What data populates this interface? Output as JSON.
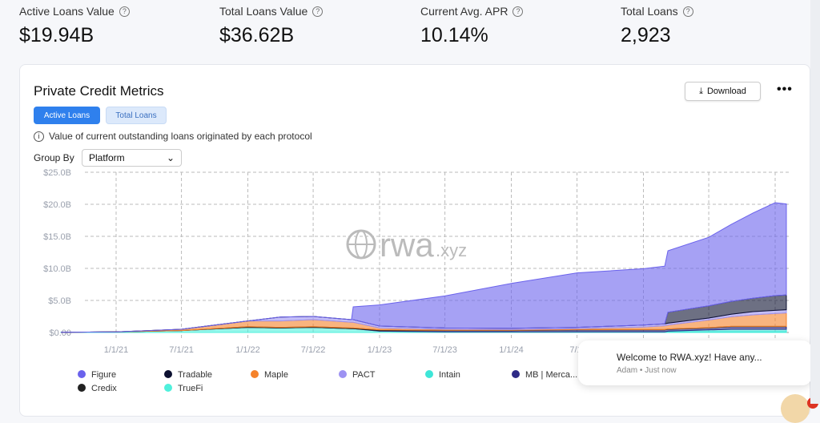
{
  "stats": [
    {
      "label": "Active Loans Value",
      "value": "$19.94B"
    },
    {
      "label": "Total Loans Value",
      "value": "$36.62B"
    },
    {
      "label": "Current Avg. APR",
      "value": "10.14%"
    },
    {
      "label": "Total Loans",
      "value": "2,923"
    }
  ],
  "card": {
    "title": "Private Credit Metrics",
    "download": "Download",
    "more": "•••",
    "tabs": [
      "Active Loans",
      "Total Loans"
    ],
    "active_tab": "Active Loans",
    "info": "Value of current outstanding loans originated by each protocol",
    "group_by_label": "Group By",
    "group_by_value": "Platform",
    "watermark": "rwa.xyz"
  },
  "toast": {
    "message": "Welcome to RWA.xyz! Have any...",
    "sender": "Adam • Just now"
  },
  "chart_data": {
    "type": "area",
    "stacked": true,
    "grid": true,
    "legend": "bottom",
    "ylim": [
      0,
      25
    ],
    "yticks": [
      "$0.00",
      "$5.0B",
      "$10.0B",
      "$15.0B",
      "$20.0B",
      "$25.0B"
    ],
    "xticks": [
      "1/1/21",
      "7/1/21",
      "1/1/22",
      "7/1/22",
      "1/1/23",
      "7/1/23",
      "1/1/24",
      "7/1/"
    ],
    "x": [
      "2020-08-01",
      "2021-01-01",
      "2021-07-01",
      "2022-01-01",
      "2022-04-01",
      "2022-07-01",
      "2022-10-15",
      "2022-10-20",
      "2023-01-01",
      "2023-07-01",
      "2024-01-01",
      "2024-07-01",
      "2025-01-01",
      "2025-03-01",
      "2025-03-10",
      "2025-07-01",
      "2025-09-01",
      "2025-11-01",
      "2026-01-01",
      "2026-02-01"
    ],
    "unit": "B USD",
    "series": [
      {
        "name": "TrueFi",
        "color": "#4ff0dc",
        "values": [
          0.02,
          0.1,
          0.3,
          0.8,
          0.7,
          0.8,
          0.6,
          0.6,
          0.2,
          0.1,
          0.1,
          0.1,
          0.1,
          0.1,
          0.1,
          0.1,
          0.1,
          0.1,
          0.1,
          0.1
        ]
      },
      {
        "name": "Intain",
        "color": "#3ee6d8",
        "values": [
          0,
          0,
          0,
          0,
          0,
          0,
          0,
          0,
          0,
          0,
          0,
          0,
          0,
          0,
          0.1,
          0.3,
          0.4,
          0.4,
          0.4,
          0.4
        ]
      },
      {
        "name": "MB | Merca...",
        "color": "#2e2a86",
        "values": [
          0,
          0,
          0,
          0,
          0,
          0,
          0,
          0,
          0.1,
          0.2,
          0.2,
          0.3,
          0.3,
          0.3,
          0.3,
          0.3,
          0.4,
          0.4,
          0.4,
          0.4
        ]
      },
      {
        "name": "Credix",
        "color": "#222222",
        "values": [
          0,
          0,
          0,
          0.1,
          0.1,
          0.1,
          0.1,
          0.1,
          0.1,
          0.05,
          0.05,
          0.05,
          0.05,
          0.05,
          0.05,
          0.05,
          0.05,
          0.05,
          0.05,
          0.05
        ]
      },
      {
        "name": "Maple",
        "color": "#f5822a",
        "values": [
          0,
          0,
          0.2,
          0.9,
          1.0,
          1.1,
          0.9,
          0.9,
          0.3,
          0.15,
          0.1,
          0.15,
          0.4,
          0.6,
          0.6,
          1.2,
          1.5,
          1.8,
          2.0,
          2.1
        ]
      },
      {
        "name": "PACT",
        "color": "#9d92f2",
        "values": [
          0,
          0,
          0,
          0,
          0.6,
          0.5,
          0.4,
          0.4,
          0.3,
          0.2,
          0.2,
          0.2,
          0.3,
          0.3,
          0.3,
          0.3,
          0.4,
          0.5,
          0.5,
          0.5
        ]
      },
      {
        "name": "Tradable",
        "color": "#0c1030",
        "values": [
          0,
          0,
          0,
          0,
          0,
          0,
          0,
          0,
          0,
          0,
          0,
          0,
          0,
          0,
          1.7,
          1.9,
          2.0,
          2.1,
          2.3,
          2.3
        ]
      },
      {
        "name": "Figure",
        "color": "#6a62ec",
        "values": [
          0,
          0,
          0,
          0,
          0,
          0,
          0,
          2.0,
          3.3,
          5.0,
          7.0,
          8.5,
          8.8,
          9.0,
          9.6,
          10.7,
          12.0,
          13.3,
          14.5,
          14.2
        ]
      }
    ],
    "legend_order": [
      "Figure",
      "Tradable",
      "Maple",
      "PACT",
      "Intain",
      "MB | Merca...",
      "Credix",
      "TrueFi"
    ]
  }
}
